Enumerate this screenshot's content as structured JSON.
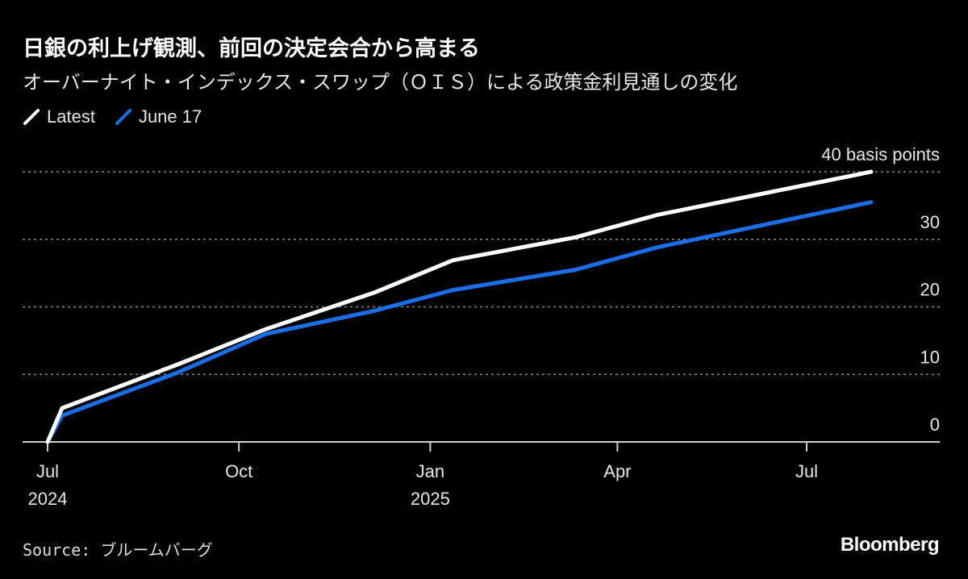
{
  "title": "日銀の利上げ観測、前回の決定会合から高まる",
  "subtitle": "オーバーナイト・インデックス・スワップ（ＯＩＳ）による政策金利見通しの変化",
  "source": "Source: ブルームバーグ",
  "logo": "Bloomberg",
  "colors": {
    "background": "#000000",
    "latest": "#ffffff",
    "june17": "#1a6fe8",
    "grid": "#888888"
  },
  "chart_data": {
    "type": "line",
    "title": "日銀の利上げ観測、前回の決定会合から高まる",
    "ylabel": "",
    "y_unit_label": "40 basis points",
    "ylim": [
      0,
      40
    ],
    "yticks": [
      0,
      10,
      20,
      30,
      40
    ],
    "ytick_labels": [
      "0",
      "10",
      "20",
      "30",
      "40 basis points"
    ],
    "xlim": [
      "2024-07-01",
      "2025-08-20"
    ],
    "xticks": [
      {
        "date": "2024-07-01",
        "label": "Jul",
        "sublabel": "2024"
      },
      {
        "date": "2024-10-01",
        "label": "Oct",
        "sublabel": ""
      },
      {
        "date": "2025-01-01",
        "label": "Jan",
        "sublabel": "2025"
      },
      {
        "date": "2025-04-01",
        "label": "Apr",
        "sublabel": ""
      },
      {
        "date": "2025-07-01",
        "label": "Jul",
        "sublabel": ""
      }
    ],
    "grid": true,
    "legend_placement": "top-left",
    "x": [
      "2024-07-01",
      "2024-07-08",
      "2024-09-01",
      "2024-10-14",
      "2024-12-05",
      "2025-01-12",
      "2025-03-12",
      "2025-04-20",
      "2025-08-01"
    ],
    "series": [
      {
        "name": "Latest",
        "color": "#ffffff",
        "values": [
          0,
          5.0,
          11.4,
          16.7,
          22.1,
          26.9,
          30.3,
          33.6,
          40.0
        ]
      },
      {
        "name": "June 17",
        "color": "#1a6fe8",
        "values": [
          0,
          3.9,
          10.2,
          16.0,
          19.4,
          22.5,
          25.5,
          28.8,
          35.5
        ]
      }
    ]
  }
}
